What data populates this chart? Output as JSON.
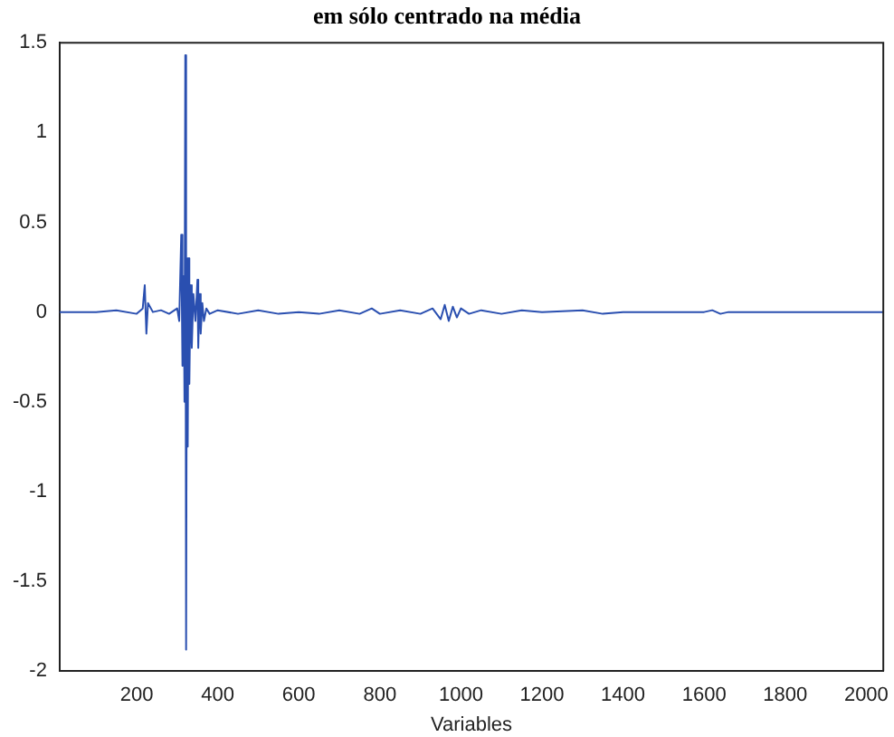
{
  "chart_data": {
    "type": "line",
    "title": "em sólo centrado na média",
    "xlabel": "Variables",
    "x": [
      10,
      100,
      150,
      200,
      215,
      220,
      224,
      228,
      240,
      260,
      280,
      300,
      305,
      310,
      313,
      316,
      318,
      320,
      322,
      324,
      326,
      328,
      330,
      333,
      336,
      340,
      345,
      350,
      352,
      355,
      358,
      362,
      366,
      372,
      380,
      400,
      450,
      500,
      550,
      600,
      650,
      700,
      750,
      780,
      800,
      850,
      900,
      930,
      950,
      960,
      970,
      980,
      990,
      1000,
      1020,
      1050,
      1100,
      1150,
      1200,
      1300,
      1350,
      1400,
      1600,
      1620,
      1640,
      1660,
      2042
    ],
    "series": [
      {
        "color": "#2a4fb0",
        "values": [
          0,
          0,
          0.01,
          -0.01,
          0.02,
          0.15,
          -0.12,
          0.05,
          0,
          0.01,
          -0.01,
          0.02,
          -0.05,
          0.43,
          -0.3,
          0.2,
          -0.5,
          1.43,
          -1.88,
          0.3,
          -0.75,
          0.3,
          -0.4,
          0.15,
          -0.2,
          0.1,
          -0.05,
          0.18,
          -0.2,
          0.1,
          -0.12,
          0.05,
          -0.05,
          0.02,
          -0.01,
          0.01,
          -0.01,
          0.01,
          -0.01,
          0,
          -0.01,
          0.01,
          -0.01,
          0.02,
          -0.01,
          0.01,
          -0.01,
          0.02,
          -0.04,
          0.04,
          -0.05,
          0.03,
          -0.03,
          0.02,
          -0.01,
          0.01,
          -0.01,
          0.01,
          0,
          0.01,
          -0.01,
          0,
          0,
          0.01,
          -0.01,
          0,
          0
        ]
      }
    ],
    "xlim": [
      10,
      2042
    ],
    "xticks": [
      200,
      400,
      600,
      800,
      1000,
      1200,
      1400,
      1600,
      1800,
      2000
    ],
    "ylim": [
      -2,
      1.5
    ],
    "yticks": [
      -2,
      -1.5,
      -1,
      -0.5,
      0,
      0.5,
      1,
      1.5
    ],
    "grid": false,
    "legend": false,
    "marker": "none",
    "line_style": "solid"
  }
}
